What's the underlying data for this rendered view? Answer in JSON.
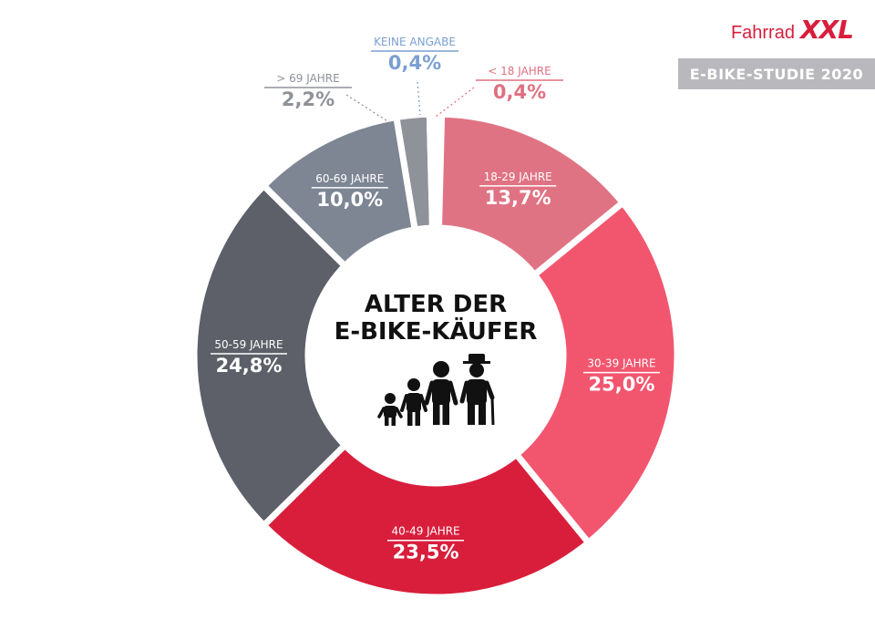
{
  "brand": {
    "word": "Fahrrad",
    "mark": "XXL",
    "color": "#d81e3c"
  },
  "study_label": "E-BIKE-STUDIE 2020",
  "center": {
    "line1": "ALTER DER",
    "line2": "E-BIKE-KÄUFER",
    "icon": "family-generations-icon"
  },
  "chart_data": {
    "type": "pie",
    "style": "donut",
    "title": "ALTER DER E-BIKE-KÄUFER",
    "legend": "none",
    "slices": [
      {
        "label": "< 18 JAHRE",
        "display": "0,4%",
        "value": 0.4,
        "color": "#e07080",
        "label_position": "outside"
      },
      {
        "label": "18-29 JAHRE",
        "display": "13,7%",
        "value": 13.7,
        "color": "#e07383",
        "label_position": "inside"
      },
      {
        "label": "30-39 JAHRE",
        "display": "25,0%",
        "value": 25.0,
        "color": "#f2566f",
        "label_position": "inside"
      },
      {
        "label": "40-49 JAHRE",
        "display": "23,5%",
        "value": 23.5,
        "color": "#d91e3c",
        "label_position": "inside"
      },
      {
        "label": "50-59 JAHRE",
        "display": "24,8%",
        "value": 24.8,
        "color": "#5d6068",
        "label_position": "inside"
      },
      {
        "label": "60-69 JAHRE",
        "display": "10,0%",
        "value": 10.0,
        "color": "#7e8694",
        "label_position": "inside"
      },
      {
        "label": "> 69 JAHRE",
        "display": "2,2%",
        "value": 2.2,
        "color": "#8f9299",
        "label_position": "outside"
      },
      {
        "label": "KEINE ANGABE",
        "display": "0,4%",
        "value": 0.4,
        "color": "#7b9fd1",
        "label_position": "outside"
      }
    ]
  }
}
